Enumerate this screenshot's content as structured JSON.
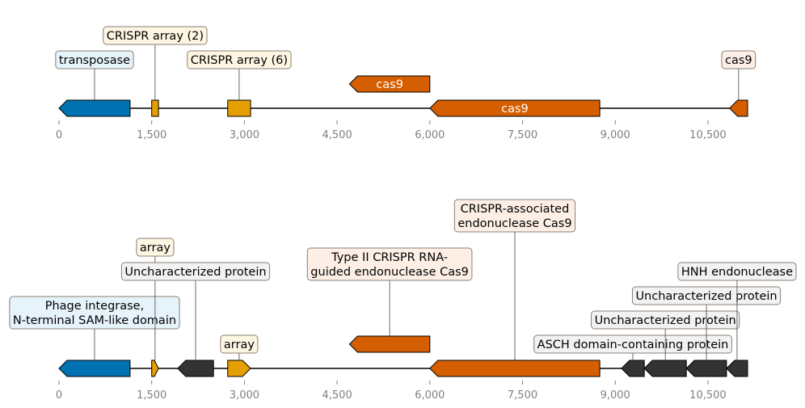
{
  "axis": {
    "ticks": [
      0,
      1500,
      3000,
      4500,
      6000,
      7500,
      9000,
      10500
    ],
    "tick_labels": [
      "0",
      "1,500",
      "3,000",
      "4,500",
      "6,000",
      "7,500",
      "9,000",
      "10,500"
    ],
    "range": [
      0,
      11000
    ]
  },
  "colors": {
    "transposase_blue": "#0072b2",
    "array_yellow": "#e69f00",
    "cas9_orange": "#d55e00",
    "uncharacterized_dark": "#333333",
    "backbone": "#000000"
  },
  "tracks": [
    {
      "features": [
        {
          "start": 0,
          "end": 1150,
          "strand": -1,
          "color": "#0072b2",
          "label": "transposase",
          "label_box": "#e6f3fb",
          "label_row": 1
        },
        {
          "start": 1500,
          "end": 1610,
          "strand": 0,
          "color": "#e69f00",
          "label": "CRISPR array (2)",
          "label_box": "#fdf6e3",
          "label_row": 2
        },
        {
          "start": 2730,
          "end": 3100,
          "strand": 0,
          "color": "#e69f00",
          "label": "CRISPR array (6)",
          "label_box": "#fdf6e3",
          "label_row": 1
        },
        {
          "start": 4700,
          "end": 6000,
          "strand": -1,
          "color": "#d55e00",
          "inner": "cas9",
          "lane": 1
        },
        {
          "start": 6000,
          "end": 8750,
          "strand": -1,
          "color": "#d55e00",
          "inner": "cas9"
        },
        {
          "start": 10850,
          "end": 11200,
          "strand": -1,
          "color": "#d55e00",
          "label": "cas9",
          "label_box": "#fdefe6",
          "label_row": 1
        }
      ]
    },
    {
      "features": [
        {
          "start": 0,
          "end": 1150,
          "strand": -1,
          "color": "#0072b2",
          "label": "Phage integrase,\nN-terminal SAM-like domain",
          "label_box": "#e6f3fb",
          "label_row": 1
        },
        {
          "start": 1500,
          "end": 1610,
          "strand": 1,
          "color": "#e69f00",
          "label": "array",
          "label_box": "#fdf6e3",
          "label_row": 4
        },
        {
          "start": 1920,
          "end": 2500,
          "strand": -1,
          "color": "#333333",
          "label": "Uncharacterized protein",
          "label_box": "#f2f2f2",
          "label_row": 3
        },
        {
          "start": 2730,
          "end": 3100,
          "strand": 1,
          "color": "#e69f00",
          "label": "array",
          "label_box": "#fdf6e3",
          "label_row": 0
        },
        {
          "start": 4700,
          "end": 6000,
          "strand": -1,
          "color": "#d55e00",
          "lane": 1,
          "label": "Type II CRISPR RNA-\nguided endonuclease Cas9",
          "label_box": "#fdefe6",
          "label_row": 2
        },
        {
          "start": 6000,
          "end": 8750,
          "strand": -1,
          "color": "#d55e00",
          "label": "CRISPR-associated\nendonuclease Cas9",
          "label_box": "#fdefe6",
          "label_row": 5
        },
        {
          "start": 9100,
          "end": 9470,
          "strand": -1,
          "color": "#333333",
          "label": "ASCH domain-containing protein",
          "label_box": "#f2f2f2",
          "label_row": 0
        },
        {
          "start": 9470,
          "end": 10150,
          "strand": -1,
          "color": "#333333",
          "label": "Uncharacterized protein",
          "label_box": "#f2f2f2",
          "label_row": 1
        },
        {
          "start": 10150,
          "end": 10800,
          "strand": -1,
          "color": "#333333",
          "label": "Uncharacterized protein",
          "label_box": "#f2f2f2",
          "label_row": 2
        },
        {
          "start": 10800,
          "end": 11200,
          "strand": -1,
          "color": "#333333",
          "label": "HNH endonuclease",
          "label_box": "#f2f2f2",
          "label_row": 3
        }
      ]
    }
  ]
}
